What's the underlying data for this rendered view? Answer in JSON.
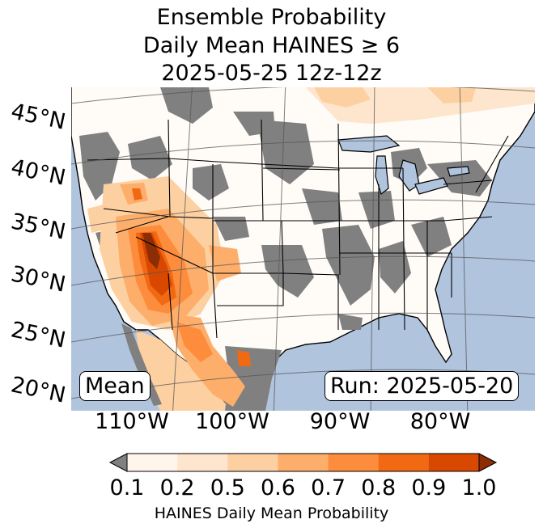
{
  "title": {
    "line1": "Ensemble Probability",
    "line2": "Daily Mean HAINES ≥ 6",
    "line3": "2025-05-25 12z-12z"
  },
  "map": {
    "region": "Contiguous United States",
    "latitude_labels": [
      "45°N",
      "40°N",
      "35°N",
      "30°N",
      "25°N",
      "20°N"
    ],
    "longitude_labels": [
      "110°W",
      "100°W",
      "90°W",
      "80°W"
    ],
    "ocean_color": "#b0c4de",
    "land_color": "#ffffff",
    "below_threshold_color": "#808080"
  },
  "badges": {
    "mean": "Mean",
    "run": "Run: 2025-05-20"
  },
  "colorbar": {
    "ticks": [
      "0.1",
      "0.2",
      "0.5",
      "0.6",
      "0.7",
      "0.8",
      "0.9",
      "1.0"
    ],
    "colors": [
      "#fff5eb",
      "#fee6ce",
      "#fdd0a2",
      "#fdae6b",
      "#fd8d3c",
      "#f16913",
      "#d94801",
      "#8c2d04"
    ],
    "under_color": "#808080",
    "label": "HAINES Daily Mean Probability"
  }
}
